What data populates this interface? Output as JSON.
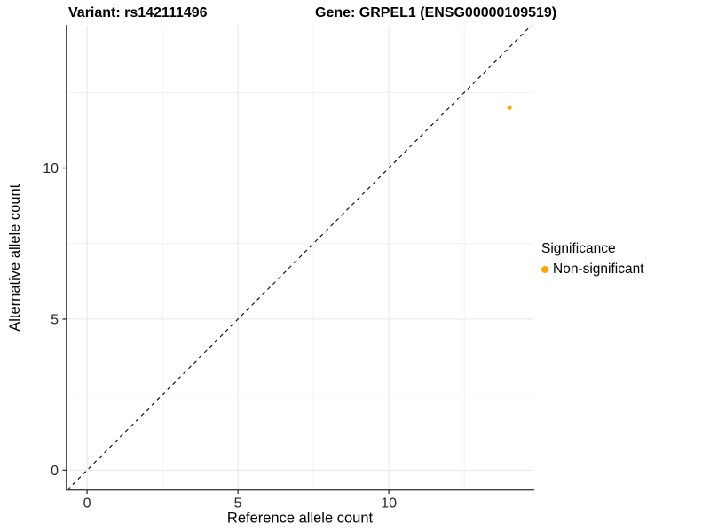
{
  "titles": {
    "variant": "Variant: rs142111496",
    "gene": "Gene: GRPEL1 (ENSG00000109519)"
  },
  "chart_data": {
    "type": "scatter",
    "xlabel": "Reference allele count",
    "ylabel": "Alternative allele count",
    "xlim": [
      -0.68,
      14.79
    ],
    "ylim": [
      -0.65,
      14.71
    ],
    "xticks": [
      0,
      5,
      10
    ],
    "yticks": [
      0,
      5,
      10
    ],
    "minor_gridlines_x": [
      2.5,
      7.5,
      12.5
    ],
    "minor_gridlines_y": [
      2.5,
      7.5,
      12.5
    ],
    "grid": true,
    "identity_line": {
      "equation": "y = x",
      "style": "dashed",
      "color": "#000000"
    },
    "series": [
      {
        "name": "Non-significant",
        "color": "#FFA500",
        "points": [
          {
            "x": 14,
            "y": 12
          }
        ]
      }
    ],
    "legend": {
      "title": "Significance",
      "position": "right",
      "entries": [
        {
          "label": "Non-significant",
          "color": "#FFA500"
        }
      ]
    },
    "colors": {
      "axis_line": "#404040",
      "tick_text": "#262626",
      "grid_major": "#e5e5e5",
      "grid_minor": "#f0f0f0"
    }
  }
}
